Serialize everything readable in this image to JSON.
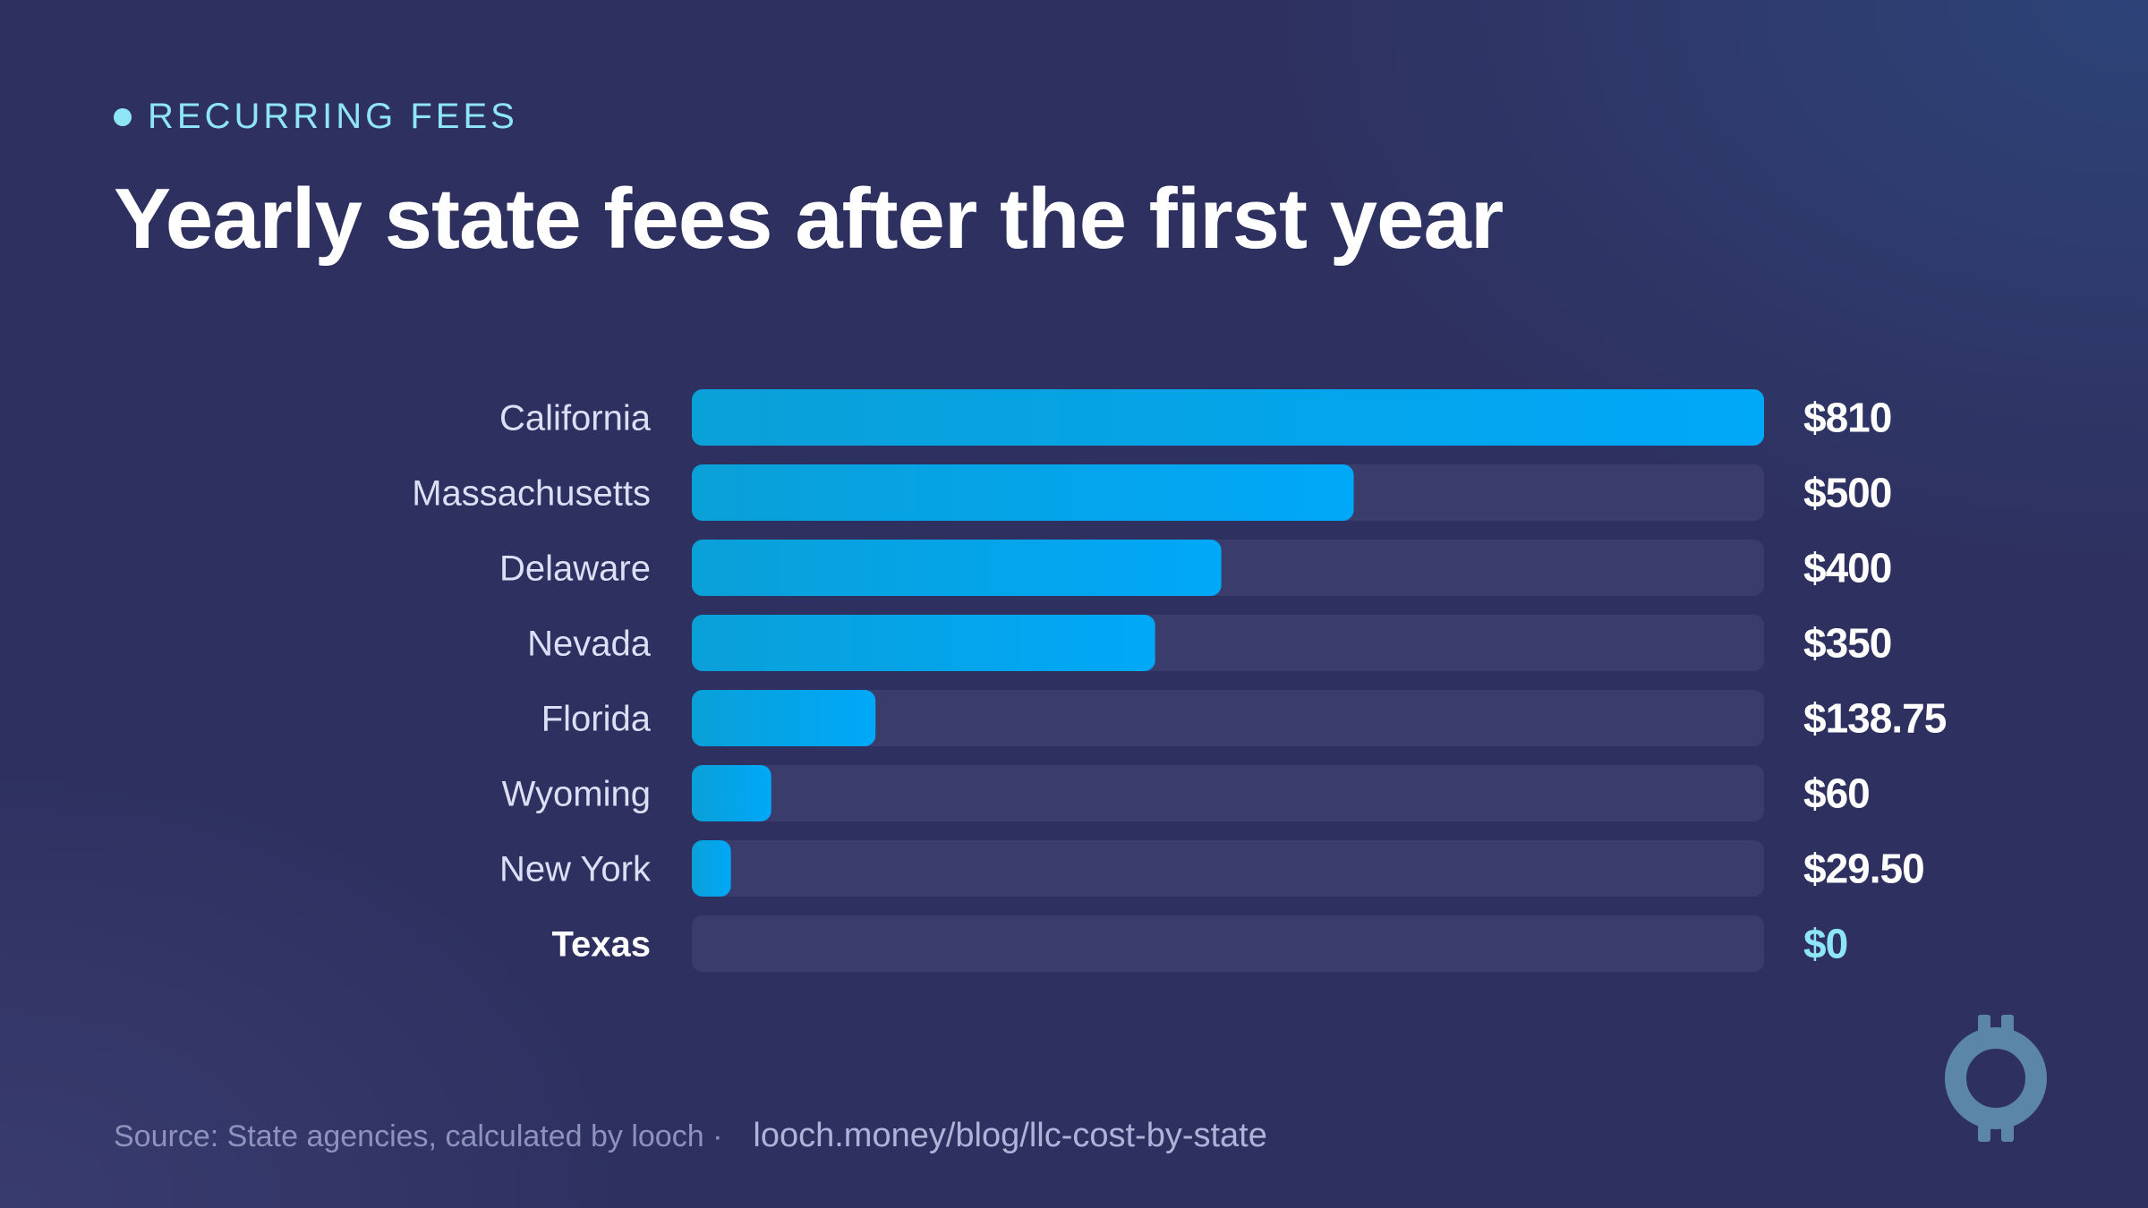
{
  "header": {
    "eyebrow": "RECURRING FEES",
    "title": "Yearly state fees after the first year"
  },
  "footer": {
    "source": "Source: State agencies, calculated by looch ·",
    "url": "looch.money/blog/llc-cost-by-state"
  },
  "logo": {
    "icon": "looch-logo-icon"
  },
  "colors": {
    "background": "#2e3160",
    "track": "#3a3d6b",
    "bar_start": "#0aa0d8",
    "bar_end": "#00a8f8",
    "label": "#dcdff5",
    "value": "#ffffff",
    "highlight": "#8ee6f5",
    "eyebrow": "#8ee6f5"
  },
  "chart_data": {
    "type": "bar",
    "orientation": "horizontal",
    "title": "Yearly state fees after the first year",
    "xlabel": "",
    "ylabel": "",
    "xlim": [
      0,
      810
    ],
    "grid": false,
    "categories": [
      "California",
      "Massachusetts",
      "Delaware",
      "Nevada",
      "Florida",
      "Wyoming",
      "New York",
      "Texas"
    ],
    "values": [
      810,
      500,
      400,
      350,
      138.75,
      60,
      29.5,
      0
    ],
    "data_labels": [
      "$810",
      "$500",
      "$400",
      "$350",
      "$138.75",
      "$60",
      "$29.50",
      "$0"
    ],
    "highlight": "Texas"
  }
}
